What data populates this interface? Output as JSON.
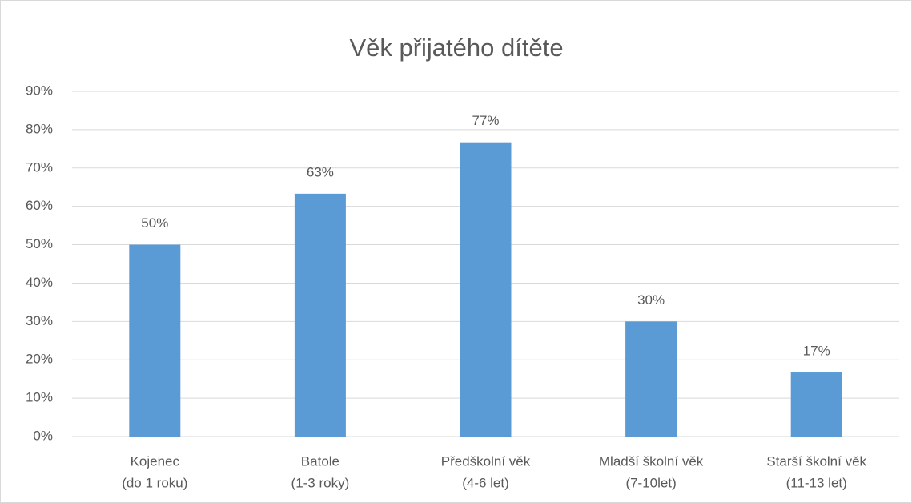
{
  "chart_data": {
    "type": "bar",
    "title": "Věk přijatého dítěte",
    "categories": [
      [
        "Kojenec",
        "(do 1 roku)"
      ],
      [
        "Batole",
        "(1-3 roky)"
      ],
      [
        "Předškolní věk",
        "(4-6 let)"
      ],
      [
        "Mladší školní věk",
        "(7-10let)"
      ],
      [
        "Starší školní věk",
        "(11-13 let)"
      ]
    ],
    "values": [
      50,
      63.3,
      76.7,
      30,
      16.7
    ],
    "value_labels": [
      "50%",
      "63%",
      "77%",
      "30%",
      "17%"
    ],
    "color": "#5b9bd5",
    "ylim": [
      0,
      90
    ],
    "yticks": [
      {
        "value": 0,
        "label": "0%"
      },
      {
        "value": 10,
        "label": "10%"
      },
      {
        "value": 20,
        "label": "20%"
      },
      {
        "value": 30,
        "label": "30%"
      },
      {
        "value": 40,
        "label": "40%"
      },
      {
        "value": 50,
        "label": "50%"
      },
      {
        "value": 60,
        "label": "60%"
      },
      {
        "value": 70,
        "label": "70%"
      },
      {
        "value": 80,
        "label": "80%"
      },
      {
        "value": 90,
        "label": "90%"
      }
    ],
    "grid": true
  }
}
